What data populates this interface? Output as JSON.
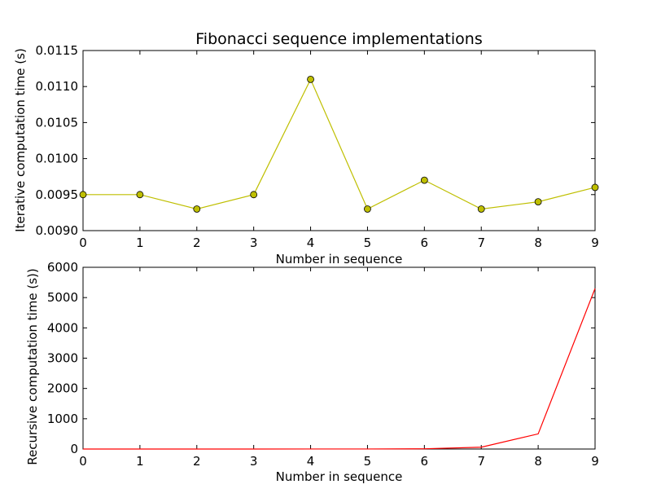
{
  "chart_data": [
    {
      "type": "line",
      "title": "Fibonacci sequence implementations",
      "xlabel": "Number in sequence",
      "ylabel": "Iterative computation time (s)",
      "x": [
        0,
        1,
        2,
        3,
        4,
        5,
        6,
        7,
        8,
        9
      ],
      "xlim": [
        0,
        9
      ],
      "ylim": [
        0.009,
        0.0115
      ],
      "xticks": [
        0,
        1,
        2,
        3,
        4,
        5,
        6,
        7,
        8,
        9
      ],
      "xtick_labels": [
        "0",
        "1",
        "2",
        "3",
        "4",
        "5",
        "6",
        "7",
        "8",
        "9"
      ],
      "yticks": [
        0.009,
        0.0095,
        0.01,
        0.0105,
        0.011,
        0.0115
      ],
      "ytick_labels": [
        "0.0090",
        "0.0095",
        "0.0100",
        "0.0105",
        "0.0110",
        "0.0115"
      ],
      "grid": false,
      "series": [
        {
          "values": [
            0.0095,
            0.0095,
            0.0093,
            0.0095,
            0.0111,
            0.0093,
            0.0097,
            0.0093,
            0.0094,
            0.0096
          ],
          "color": "#bfbf00",
          "marker": "circle"
        }
      ]
    },
    {
      "type": "line",
      "title": "",
      "xlabel": "Number in sequence",
      "ylabel": "Recursive computation time (s))",
      "x": [
        0,
        1,
        2,
        3,
        4,
        5,
        6,
        7,
        8,
        9
      ],
      "xlim": [
        0,
        9
      ],
      "ylim": [
        0,
        6000
      ],
      "xticks": [
        0,
        1,
        2,
        3,
        4,
        5,
        6,
        7,
        8,
        9
      ],
      "xtick_labels": [
        "0",
        "1",
        "2",
        "3",
        "4",
        "5",
        "6",
        "7",
        "8",
        "9"
      ],
      "yticks": [
        0,
        1000,
        2000,
        3000,
        4000,
        5000,
        6000
      ],
      "ytick_labels": [
        "0",
        "1000",
        "2000",
        "3000",
        "4000",
        "5000",
        "6000"
      ],
      "grid": false,
      "series": [
        {
          "values": [
            0,
            0,
            0,
            0,
            1,
            2,
            8,
            60,
            500,
            5300
          ],
          "color": "#ff0000",
          "marker": "none"
        }
      ]
    }
  ]
}
